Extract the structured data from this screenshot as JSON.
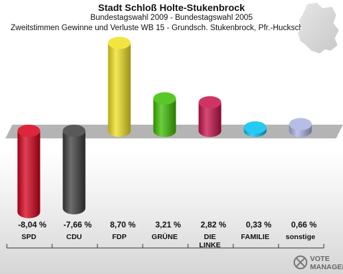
{
  "header": {
    "title": "Stadt Schloß Holte-Stukenbrock",
    "subtitle": "Bundestagswahl 2009 - Bundestagswahl 2005",
    "description": "Zweitstimmen Gewinne und Verluste WB 15 - Grundsch. Stukenbrock, Pfr.-Huckschlag-Weg"
  },
  "watermark": {
    "line1": "VOTE",
    "line2": "MANAGER"
  },
  "chart_data": {
    "type": "bar",
    "title": "Stadt Schloß Holte-Stukenbrock",
    "subtitle": "Bundestagswahl 2009 - Bundestagswahl 2005",
    "categories": [
      "SPD",
      "CDU",
      "FDP",
      "GRÜNE",
      "DIE LINKE",
      "FAMILIE",
      "sonstige"
    ],
    "category_lines": [
      [
        "SPD"
      ],
      [
        "CDU"
      ],
      [
        "FDP"
      ],
      [
        "GRÜNE"
      ],
      [
        "DIE",
        "LINKE"
      ],
      [
        "FAMILIE"
      ],
      [
        "sonstige"
      ]
    ],
    "values": [
      -8.04,
      -7.66,
      8.7,
      3.21,
      2.82,
      0.33,
      0.66
    ],
    "value_labels": [
      "-8,04 %",
      "-7,66 %",
      "8,70 %",
      "3,21 %",
      "2,82 %",
      "0,33 %",
      "0,66 %"
    ],
    "colors": [
      "#d5001a",
      "#3c3c3c",
      "#f0e020",
      "#3cbe00",
      "#c8104a",
      "#00c0f0",
      "#a9b3e0"
    ],
    "unit": "%",
    "grid": false,
    "legend": "none"
  }
}
